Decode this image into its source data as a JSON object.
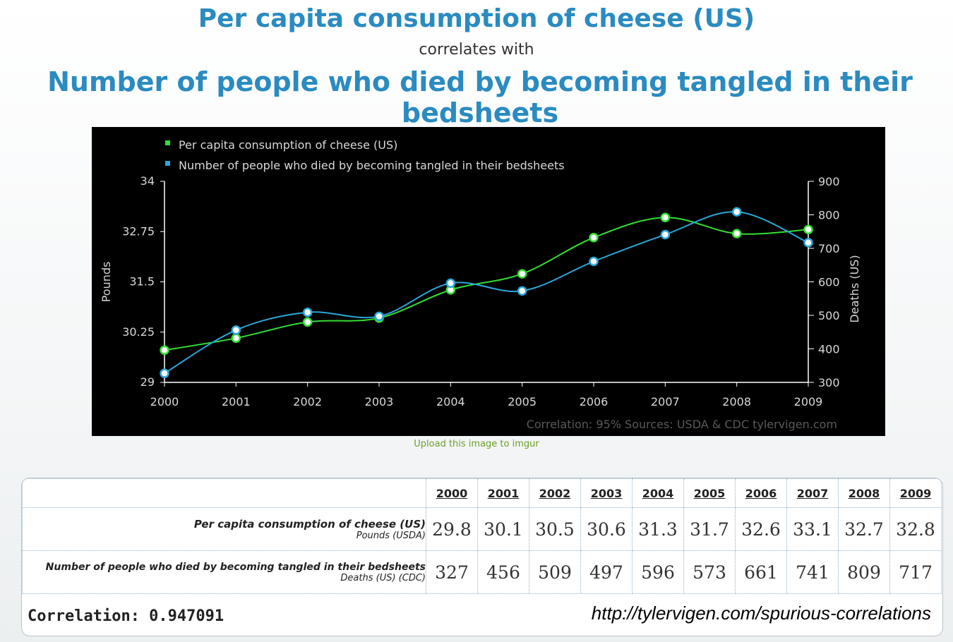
{
  "header": {
    "title": "Per capita consumption of cheese (US)",
    "connector": "correlates with",
    "subtitle": "Number of people who died by becoming tangled in their bedsheets"
  },
  "upload_link": "Upload this image to imgur",
  "chart_data": {
    "type": "line",
    "categories": [
      "2000",
      "2001",
      "2002",
      "2003",
      "2004",
      "2005",
      "2006",
      "2007",
      "2008",
      "2009"
    ],
    "series": [
      {
        "name": "Per capita consumption of cheese (US)",
        "axis": "left",
        "color": "#33dd33",
        "values": [
          29.8,
          30.1,
          30.5,
          30.6,
          31.3,
          31.7,
          32.6,
          33.1,
          32.7,
          32.8
        ]
      },
      {
        "name": "Number of people who died by becoming tangled in their bedsheets",
        "axis": "right",
        "color": "#2aa7d8",
        "values": [
          327,
          456,
          509,
          497,
          596,
          573,
          661,
          741,
          809,
          717
        ]
      }
    ],
    "ylabel_left": "Pounds",
    "ylabel_right": "Deaths (US)",
    "ylim_left": [
      29,
      34
    ],
    "yticks_left": [
      "29",
      "30.25",
      "31.5",
      "32.75",
      "34"
    ],
    "ylim_right": [
      300,
      900
    ],
    "yticks_right": [
      "300",
      "400",
      "500",
      "600",
      "700",
      "800",
      "900"
    ],
    "legend": "top-left",
    "footer": "Correlation: 95%    Sources: USDA & CDC   tylervigen.com"
  },
  "table": {
    "years": [
      "2000",
      "2001",
      "2002",
      "2003",
      "2004",
      "2005",
      "2006",
      "2007",
      "2008",
      "2009"
    ],
    "rows": [
      {
        "label": "Per capita consumption of cheese (US)",
        "unit": "Pounds (USDA)",
        "values": [
          "29.8",
          "30.1",
          "30.5",
          "30.6",
          "31.3",
          "31.7",
          "32.6",
          "33.1",
          "32.7",
          "32.8"
        ]
      },
      {
        "label": "Number of people who died by becoming tangled in their bedsheets",
        "unit": "Deaths (US) (CDC)",
        "values": [
          "327",
          "456",
          "509",
          "497",
          "596",
          "573",
          "661",
          "741",
          "809",
          "717"
        ]
      }
    ]
  },
  "correlation": "Correlation: 0.947091",
  "source_url": "http://tylervigen.com/spurious-correlations"
}
